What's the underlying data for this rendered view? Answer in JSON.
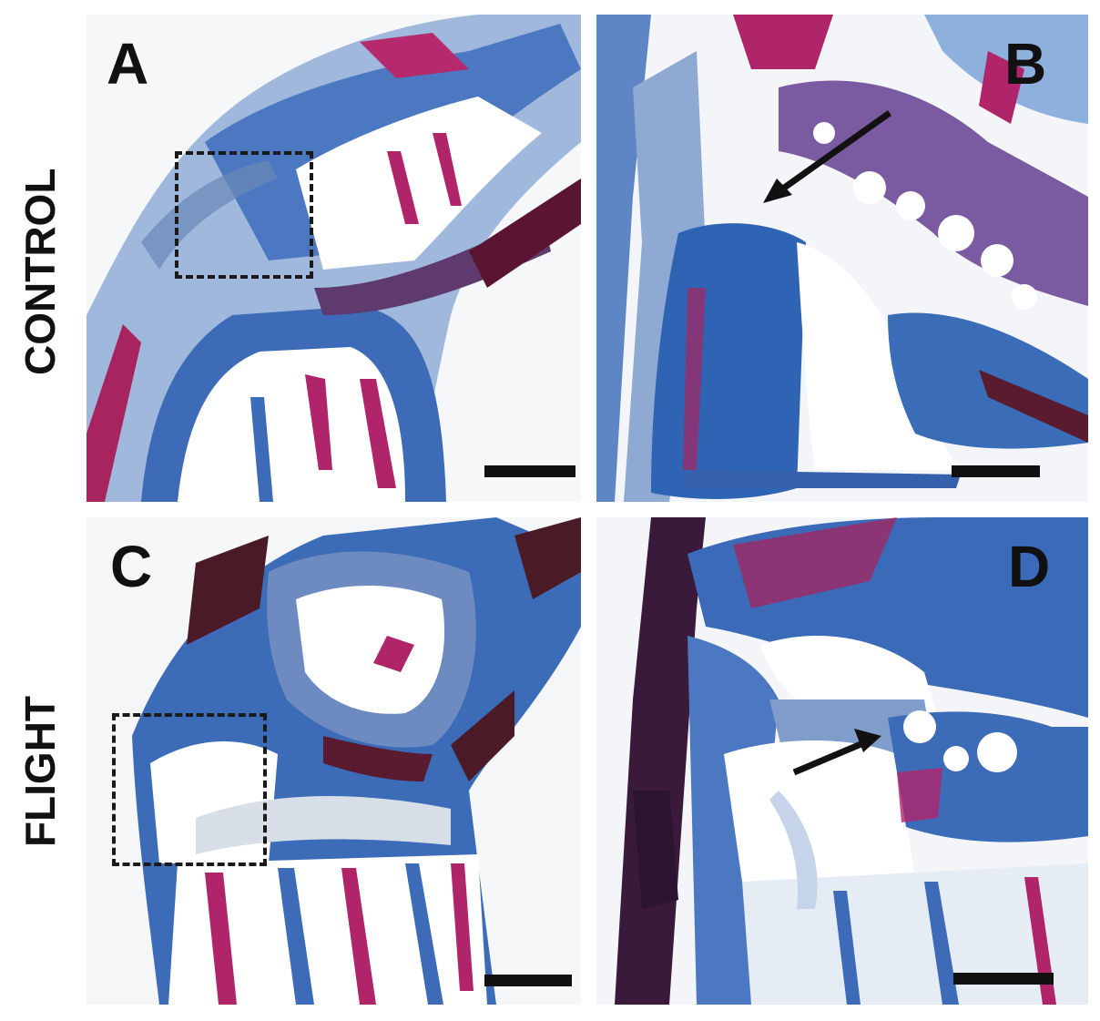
{
  "row_labels": {
    "top": "CONTROL",
    "bottom": "FLIGHT"
  },
  "panels": [
    {
      "letter": "A",
      "has_dashed_box": true,
      "has_arrow": false
    },
    {
      "letter": "B",
      "has_dashed_box": false,
      "has_arrow": true
    },
    {
      "letter": "C",
      "has_dashed_box": true,
      "has_arrow": false
    },
    {
      "letter": "D",
      "has_dashed_box": false,
      "has_arrow": true
    }
  ],
  "colors": {
    "stain_blue": "#2f5fae",
    "stain_light_blue": "#7fa6d6",
    "stain_magenta": "#b0246a",
    "stain_dark": "#3a1430",
    "background": "#f4f6f8"
  }
}
